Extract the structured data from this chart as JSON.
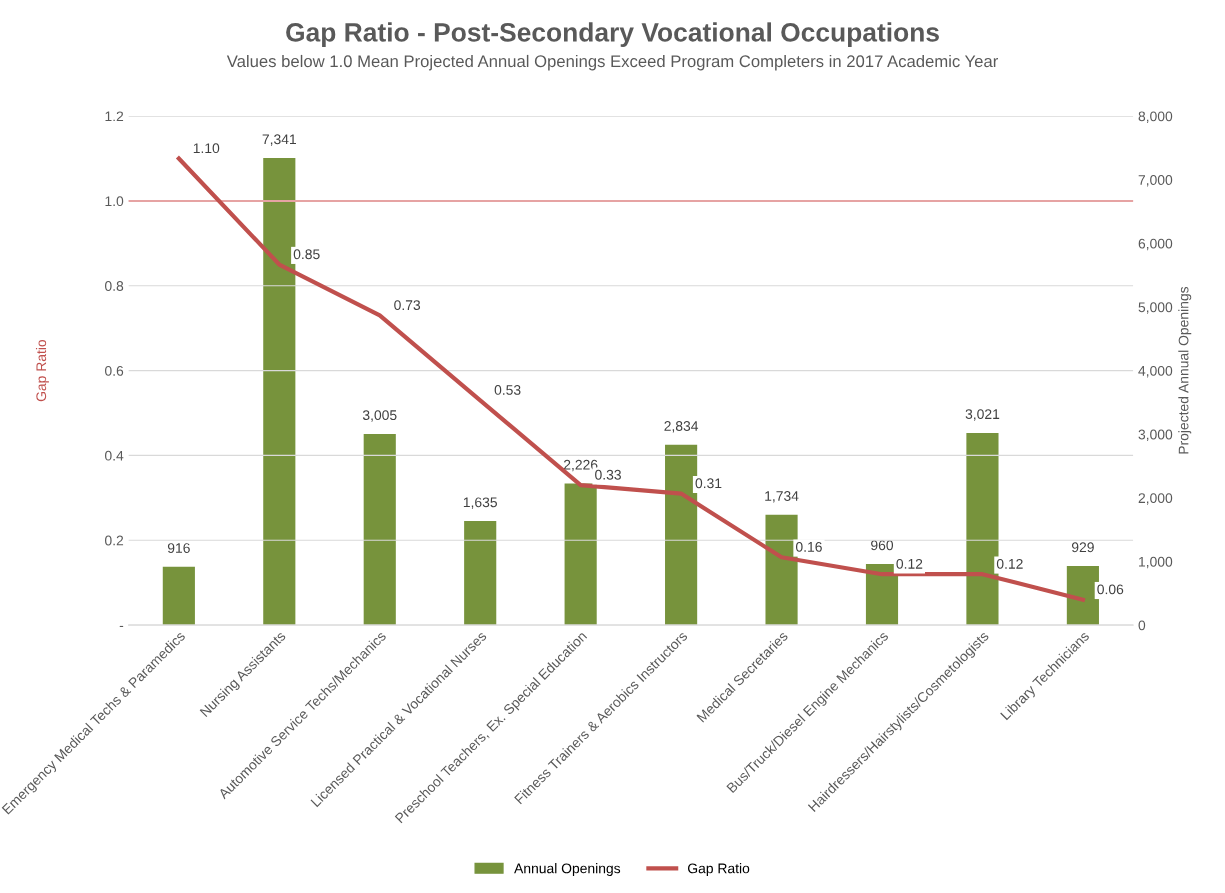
{
  "chart_data": {
    "type": "bar",
    "title": "Gap Ratio - Post-Secondary Vocational Occupations",
    "subtitle": "Values below 1.0 Mean Projected Annual Openings Exceed Program Completers in 2017 Academic Year",
    "ylabel": "Gap Ratio",
    "y2label": "Projected Annual Openings",
    "categories": [
      "Emergency Medical Techs & Paramedics",
      "Nursing Assistants",
      "Automotive Service Techs/Mechanics",
      "Licensed Practical & Vocational Nurses",
      "Preschool Teachers, Ex. Special Education",
      "Fitness Trainers & Aerobics Instructors",
      "Medical Secretaries",
      "Bus/Truck/Diesel Engine Mechanics",
      "Hairdressers/Hairstylists/Cosmetologists",
      "Library Technicians"
    ],
    "series": [
      {
        "name": "Annual Openings",
        "axis": "y2",
        "color": "#77933c",
        "values": [
          916,
          7341,
          3005,
          1635,
          2226,
          2834,
          1734,
          960,
          3021,
          929
        ],
        "value_labels": [
          "916",
          "7,341",
          "3,005",
          "1,635",
          "2,226",
          "2,834",
          "1,734",
          "960",
          "3,021",
          "929"
        ]
      },
      {
        "name": "Gap Ratio",
        "type": "line",
        "color": "#c0504d",
        "values": [
          1.1,
          0.85,
          0.73,
          0.53,
          0.33,
          0.31,
          0.16,
          0.12,
          0.12,
          0.06
        ],
        "value_labels": [
          "1.10",
          "0.85",
          "0.73",
          "0.53",
          "0.33",
          "0.31",
          "0.16",
          "0.12",
          "0.12",
          "0.06"
        ]
      }
    ],
    "ylim": [
      0,
      1.2
    ],
    "yticks": [
      {
        "value": 0,
        "label": "-"
      },
      {
        "value": 0.2,
        "label": "0.2"
      },
      {
        "value": 0.4,
        "label": "0.4"
      },
      {
        "value": 0.6,
        "label": "0.6"
      },
      {
        "value": 0.8,
        "label": "0.8"
      },
      {
        "value": 1.0,
        "label": "1.0"
      },
      {
        "value": 1.2,
        "label": "1.2"
      }
    ],
    "y2lim": [
      0,
      8000
    ],
    "y2ticks": [
      {
        "value": 0,
        "label": "0"
      },
      {
        "value": 1000,
        "label": "1,000"
      },
      {
        "value": 2000,
        "label": "2,000"
      },
      {
        "value": 3000,
        "label": "3,000"
      },
      {
        "value": 4000,
        "label": "4,000"
      },
      {
        "value": 5000,
        "label": "5,000"
      },
      {
        "value": 6000,
        "label": "6,000"
      },
      {
        "value": 7000,
        "label": "7,000"
      },
      {
        "value": 8000,
        "label": "8,000"
      }
    ],
    "ref_lines": [
      {
        "axis": "y",
        "value": 1.0,
        "color": "#e6a3a3"
      }
    ],
    "grid": "y",
    "legend": "bottom",
    "marker": "none",
    "line_style": "solid"
  }
}
